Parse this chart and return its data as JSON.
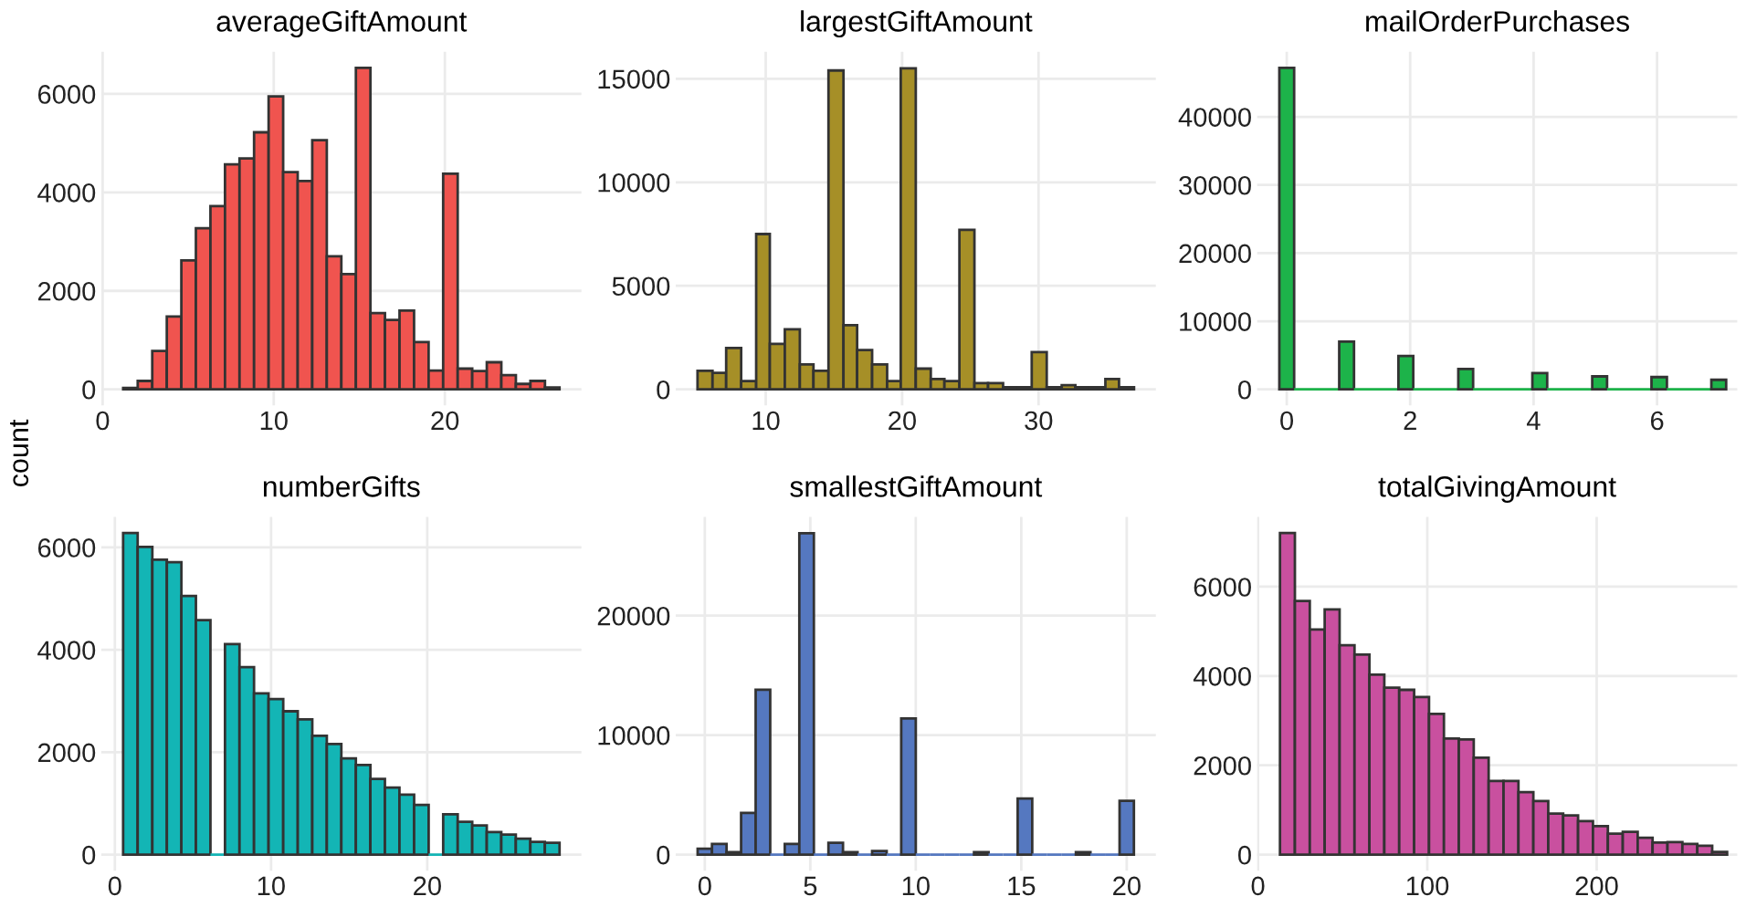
{
  "chart_data": [
    {
      "type": "histogram",
      "title": "averageGiftAmount",
      "ylabel": "count",
      "color": "#f0544f",
      "grid": true,
      "bins": [
        1.2,
        2.05,
        2.9,
        3.75,
        4.6,
        5.45,
        6.3,
        7.15,
        8.0,
        8.85,
        9.7,
        10.55,
        11.4,
        12.25,
        13.1,
        13.95,
        14.8,
        15.65,
        16.5,
        17.35,
        18.2,
        19.05,
        19.9,
        20.75,
        21.6,
        22.45,
        23.3,
        24.15,
        25.0,
        25.85,
        26.7
      ],
      "values": [
        30,
        170,
        780,
        1480,
        2620,
        3270,
        3720,
        4570,
        4690,
        5220,
        5950,
        4410,
        4230,
        5060,
        2700,
        2340,
        6530,
        1550,
        1410,
        1600,
        960,
        380,
        4380,
        420,
        370,
        550,
        290,
        110,
        170,
        40
      ],
      "xlim": [
        -0.08,
        27.98
      ],
      "xticks": [
        0,
        10,
        20
      ],
      "ylim": [
        -327,
        6857
      ],
      "yticks": [
        0,
        2000,
        4000,
        6000
      ]
    },
    {
      "type": "histogram",
      "title": "largestGiftAmount",
      "color": "#a68f27",
      "grid": true,
      "bins": [
        5,
        6.1,
        7.1,
        8.2,
        9.3,
        10.3,
        11.4,
        12.5,
        13.5,
        14.6,
        15.7,
        16.7,
        17.8,
        18.9,
        19.9,
        21,
        22.1,
        23.1,
        24.2,
        25.3,
        26.3,
        27.4,
        28.5,
        29.5,
        30.6,
        31.7,
        32.7,
        33.8,
        34.9,
        35.9,
        37
      ],
      "values": [
        900,
        800,
        2000,
        400,
        7500,
        2200,
        2900,
        1200,
        900,
        15400,
        3100,
        1900,
        1200,
        400,
        15500,
        1000,
        500,
        400,
        7700,
        300,
        300,
        100,
        100,
        1800,
        100,
        200,
        100,
        100,
        500,
        100
      ],
      "xlim": [
        3.4,
        38.6
      ],
      "xticks": [
        10,
        20,
        30
      ],
      "ylim": [
        -777,
        16307
      ],
      "yticks": [
        0,
        5000,
        10000,
        15000
      ]
    },
    {
      "type": "histogram",
      "title": "mailOrderPurchases",
      "color": "#1db34a",
      "grid": true,
      "bins": [
        -0.12,
        0.12,
        0.85,
        1.09,
        1.81,
        2.05,
        2.78,
        3.02,
        3.98,
        4.22,
        4.95,
        5.19,
        5.91,
        6.16,
        6.88,
        7.12
      ],
      "values": [
        47200,
        0,
        7000,
        0,
        4900,
        0,
        3000,
        0,
        2400,
        0,
        1900,
        0,
        1800,
        0,
        1400
      ],
      "xlim": [
        -0.48,
        7.3
      ],
      "xticks": [
        0,
        2,
        4,
        6
      ],
      "ylim": [
        -2360,
        49560
      ],
      "yticks": [
        0,
        10000,
        20000,
        30000,
        40000
      ]
    },
    {
      "type": "histogram",
      "title": "numberGifts",
      "color": "#13b5b5",
      "grid": true,
      "bins": [
        0.53,
        1.46,
        2.4,
        3.33,
        4.26,
        5.19,
        6.12,
        7.05,
        7.98,
        8.91,
        9.84,
        10.78,
        11.71,
        12.64,
        13.57,
        14.5,
        15.43,
        16.36,
        17.29,
        18.22,
        19.16,
        20.09,
        21.02,
        21.95,
        22.88,
        23.81,
        24.74,
        25.67,
        26.6,
        27.53,
        28.47
      ],
      "values": [
        6280,
        6010,
        5760,
        5710,
        5050,
        4580,
        0,
        4110,
        3660,
        3150,
        3040,
        2800,
        2640,
        2320,
        2160,
        1880,
        1750,
        1480,
        1310,
        1170,
        970,
        0,
        790,
        640,
        570,
        440,
        390,
        310,
        250,
        230
      ],
      "xlim": [
        -0.87,
        29.87
      ],
      "xticks": [
        0,
        10,
        20
      ],
      "ylim": [
        -314,
        6594
      ],
      "yticks": [
        0,
        2000,
        4000,
        6000
      ]
    },
    {
      "type": "histogram",
      "title": "smallestGiftAmount",
      "color": "#5578c0",
      "grid": true,
      "bins": [
        -0.34,
        0.34,
        1.03,
        1.72,
        2.41,
        3.1,
        3.79,
        4.48,
        5.17,
        5.86,
        6.55,
        7.24,
        7.93,
        8.62,
        9.31,
        10,
        10.69,
        11.38,
        12.07,
        12.76,
        13.45,
        14.14,
        14.83,
        15.52,
        16.21,
        16.9,
        17.59,
        18.28,
        18.97,
        19.66,
        20.34
      ],
      "values": [
        500,
        900,
        200,
        3500,
        13800,
        0,
        900,
        26900,
        0,
        1000,
        200,
        0,
        300,
        0,
        11400,
        0,
        0,
        0,
        0,
        200,
        0,
        0,
        4700,
        0,
        0,
        0,
        200,
        0,
        0,
        4500
      ],
      "xlim": [
        -1.38,
        21.38
      ],
      "xticks": [
        0,
        5,
        10,
        15,
        20
      ],
      "ylim": [
        -1346,
        28256
      ],
      "yticks": [
        0,
        10000,
        20000
      ]
    },
    {
      "type": "histogram",
      "title": "totalGivingAmount",
      "color": "#c9509f",
      "grid": true,
      "bins": [
        13,
        21.8,
        30.6,
        39.4,
        48.2,
        57,
        65.8,
        74.6,
        83.4,
        92.2,
        101,
        109.8,
        118.6,
        127.4,
        136.2,
        145,
        153.8,
        162.6,
        171.4,
        180.2,
        189,
        197.8,
        206.6,
        215.4,
        224.2,
        233,
        241.8,
        250.6,
        259.4,
        268.2,
        277
      ],
      "values": [
        7200,
        5680,
        5040,
        5490,
        4690,
        4480,
        4030,
        3740,
        3690,
        3530,
        3150,
        2600,
        2580,
        2170,
        1650,
        1650,
        1400,
        1200,
        920,
        880,
        750,
        640,
        470,
        510,
        380,
        270,
        280,
        240,
        200,
        60
      ],
      "xlim": [
        -0.5,
        283
      ],
      "xticks": [
        0,
        100,
        200
      ],
      "ylim": [
        -360,
        7560
      ],
      "yticks": [
        0,
        2000,
        4000,
        6000
      ]
    }
  ]
}
